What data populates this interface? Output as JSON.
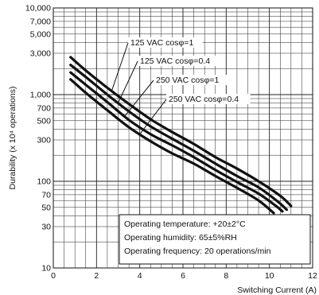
{
  "chart_data": {
    "type": "line",
    "title": "",
    "xlabel": "Switching Current (A)",
    "ylabel": "Durability (x 10⁴ operations)",
    "x_scale": "linear",
    "y_scale": "log",
    "xlim": [
      0,
      12
    ],
    "ylim": [
      10,
      10000
    ],
    "x_ticks": [
      0,
      2,
      4,
      6,
      8,
      10,
      12
    ],
    "x_tick_labels": [
      "0",
      "2",
      "4",
      "6",
      "8",
      "10",
      "12"
    ],
    "y_ticks": [
      10,
      30,
      50,
      70,
      100,
      300,
      500,
      700,
      1000,
      3000,
      5000,
      7000,
      10000
    ],
    "y_tick_labels": [
      "10",
      "30",
      "50",
      "70",
      "100",
      "300",
      "500",
      "700",
      "1,000",
      "3,000",
      "5,000",
      "7,000",
      "10,000"
    ],
    "grid": true,
    "series": [
      {
        "name": "125 VAC cosφ=1",
        "x": [
          0.8,
          1.5,
          2.5,
          3.5,
          4.5,
          5.5,
          6.5,
          7.5,
          8.5,
          9.5,
          10.5,
          11.0
        ],
        "y": [
          2700,
          1900,
          1200,
          780,
          520,
          370,
          270,
          190,
          140,
          100,
          68,
          52
        ]
      },
      {
        "name": "125 VAC cosφ=0.4",
        "x": [
          0.8,
          1.5,
          2.5,
          3.5,
          4.5,
          5.5,
          6.5,
          7.5,
          8.5,
          9.5,
          10.4,
          10.8
        ],
        "y": [
          2200,
          1600,
          1000,
          640,
          430,
          310,
          225,
          160,
          115,
          85,
          58,
          47
        ]
      },
      {
        "name": "250 VAC cosφ=1",
        "x": [
          0.8,
          1.5,
          2.5,
          3.5,
          4.5,
          5.5,
          6.5,
          7.5,
          8.5,
          9.5,
          10.3,
          10.6
        ],
        "y": [
          1800,
          1300,
          820,
          510,
          350,
          260,
          190,
          135,
          98,
          72,
          52,
          45
        ]
      },
      {
        "name": "250 VAC cosφ=0.4",
        "x": [
          0.8,
          1.5,
          2.5,
          3.5,
          4.5,
          5.5,
          6.5,
          7.5,
          8.5,
          9.5,
          10.2
        ],
        "y": [
          1500,
          1050,
          660,
          420,
          290,
          210,
          160,
          115,
          84,
          60,
          43
        ]
      }
    ],
    "notes": [
      "Operating temperature: +20±2°C",
      "Operating humidity: 65±5%RH",
      "Operating frequency: 20 operations/min"
    ]
  }
}
